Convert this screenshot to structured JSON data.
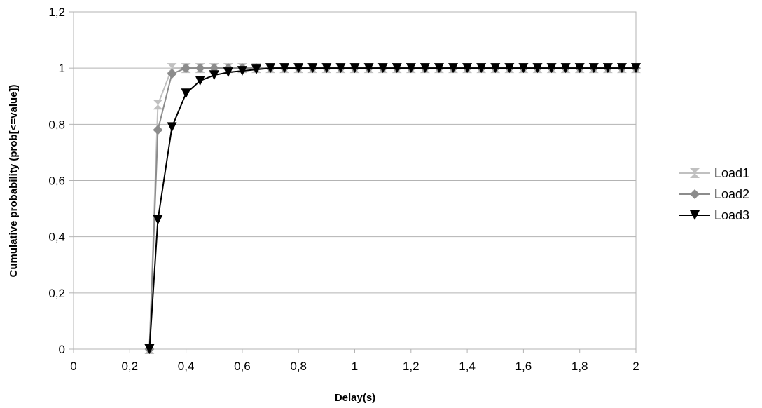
{
  "chart_data": {
    "type": "line",
    "xlabel": "Delay(s)",
    "ylabel": "Cumulative probability (prob[<=value])",
    "xlim": [
      0,
      2
    ],
    "ylim": [
      0,
      1.2
    ],
    "x_ticks": [
      "0",
      "0,2",
      "0,4",
      "0,6",
      "0,8",
      "1",
      "1,2",
      "1,4",
      "1,6",
      "1,8",
      "2"
    ],
    "y_ticks": [
      "0",
      "0,2",
      "0,4",
      "0,6",
      "0,8",
      "1",
      "1,2"
    ],
    "grid": "horizontal",
    "legend_position": "right",
    "x": [
      0.27,
      0.3,
      0.35,
      0.4,
      0.45,
      0.5,
      0.55,
      0.6,
      0.65,
      0.7,
      0.75,
      0.8,
      0.85,
      0.9,
      0.95,
      1.0,
      1.05,
      1.1,
      1.15,
      1.2,
      1.25,
      1.3,
      1.35,
      1.4,
      1.45,
      1.5,
      1.55,
      1.6,
      1.65,
      1.7,
      1.75,
      1.8,
      1.85,
      1.9,
      1.95,
      2.0
    ],
    "series": [
      {
        "name": "Load1",
        "color": "#c0c0c0",
        "marker": "hourglass",
        "values": [
          0.0,
          0.87,
          1.0,
          1.0,
          1.0,
          1.0,
          1.0,
          1.0,
          1.0,
          1.0,
          1.0,
          1.0,
          1.0,
          1.0,
          1.0,
          1.0,
          1.0,
          1.0,
          1.0,
          1.0,
          1.0,
          1.0,
          1.0,
          1.0,
          1.0,
          1.0,
          1.0,
          1.0,
          1.0,
          1.0,
          1.0,
          1.0,
          1.0,
          1.0,
          1.0,
          1.0
        ]
      },
      {
        "name": "Load2",
        "color": "#8c8c8c",
        "marker": "diamond",
        "values": [
          0.0,
          0.78,
          0.98,
          1.0,
          1.0,
          1.0,
          1.0,
          1.0,
          1.0,
          1.0,
          1.0,
          1.0,
          1.0,
          1.0,
          1.0,
          1.0,
          1.0,
          1.0,
          1.0,
          1.0,
          1.0,
          1.0,
          1.0,
          1.0,
          1.0,
          1.0,
          1.0,
          1.0,
          1.0,
          1.0,
          1.0,
          1.0,
          1.0,
          1.0,
          1.0,
          1.0
        ]
      },
      {
        "name": "Load3",
        "color": "#000000",
        "marker": "triangle-down",
        "values": [
          0.0,
          0.46,
          0.79,
          0.91,
          0.955,
          0.975,
          0.985,
          0.99,
          0.995,
          1.0,
          1.0,
          1.0,
          1.0,
          1.0,
          1.0,
          1.0,
          1.0,
          1.0,
          1.0,
          1.0,
          1.0,
          1.0,
          1.0,
          1.0,
          1.0,
          1.0,
          1.0,
          1.0,
          1.0,
          1.0,
          1.0,
          1.0,
          1.0,
          1.0,
          1.0,
          1.0
        ]
      }
    ]
  }
}
